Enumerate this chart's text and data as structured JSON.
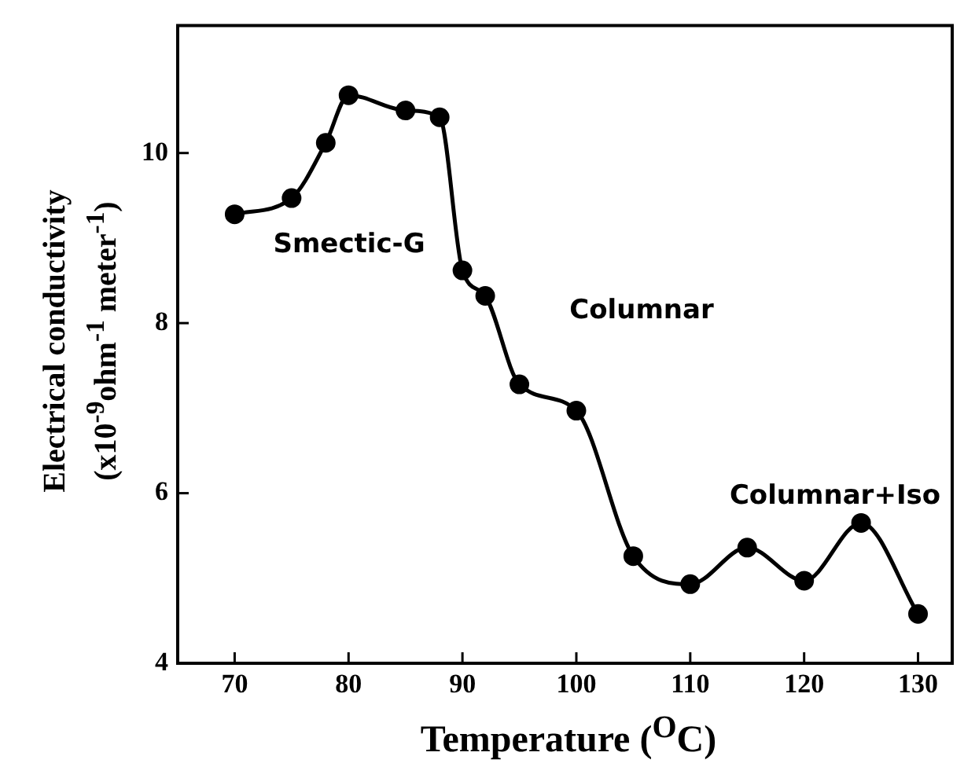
{
  "chart_data": {
    "type": "line",
    "xlabel": "Temperature ($^{O}$C)",
    "ylabel": "Electrical conductivity\n(x10$^{-9}$ohm$^{-1}$ meter$^{-1}$)",
    "x": [
      70,
      75,
      78,
      80,
      85,
      88,
      90,
      92,
      95,
      100,
      105,
      110,
      115,
      120,
      125,
      130
    ],
    "series": [
      {
        "color": "#000000",
        "values": [
          9.28,
          9.47,
          10.12,
          10.68,
          10.5,
          10.42,
          8.62,
          8.32,
          7.28,
          6.97,
          5.26,
          4.93,
          5.36,
          4.97,
          5.65,
          4.58
        ]
      }
    ],
    "xlim": [
      65,
      133
    ],
    "ylim": [
      4,
      11.5
    ],
    "xticks": [
      70,
      80,
      90,
      100,
      110,
      120,
      130
    ],
    "yticks": [
      4,
      6,
      8,
      10
    ],
    "annotations": [
      "Smectic-G",
      "Columnar",
      "Columnar+Iso"
    ],
    "grid": false,
    "legend": false,
    "marker": "circle",
    "line_style": "solid"
  }
}
